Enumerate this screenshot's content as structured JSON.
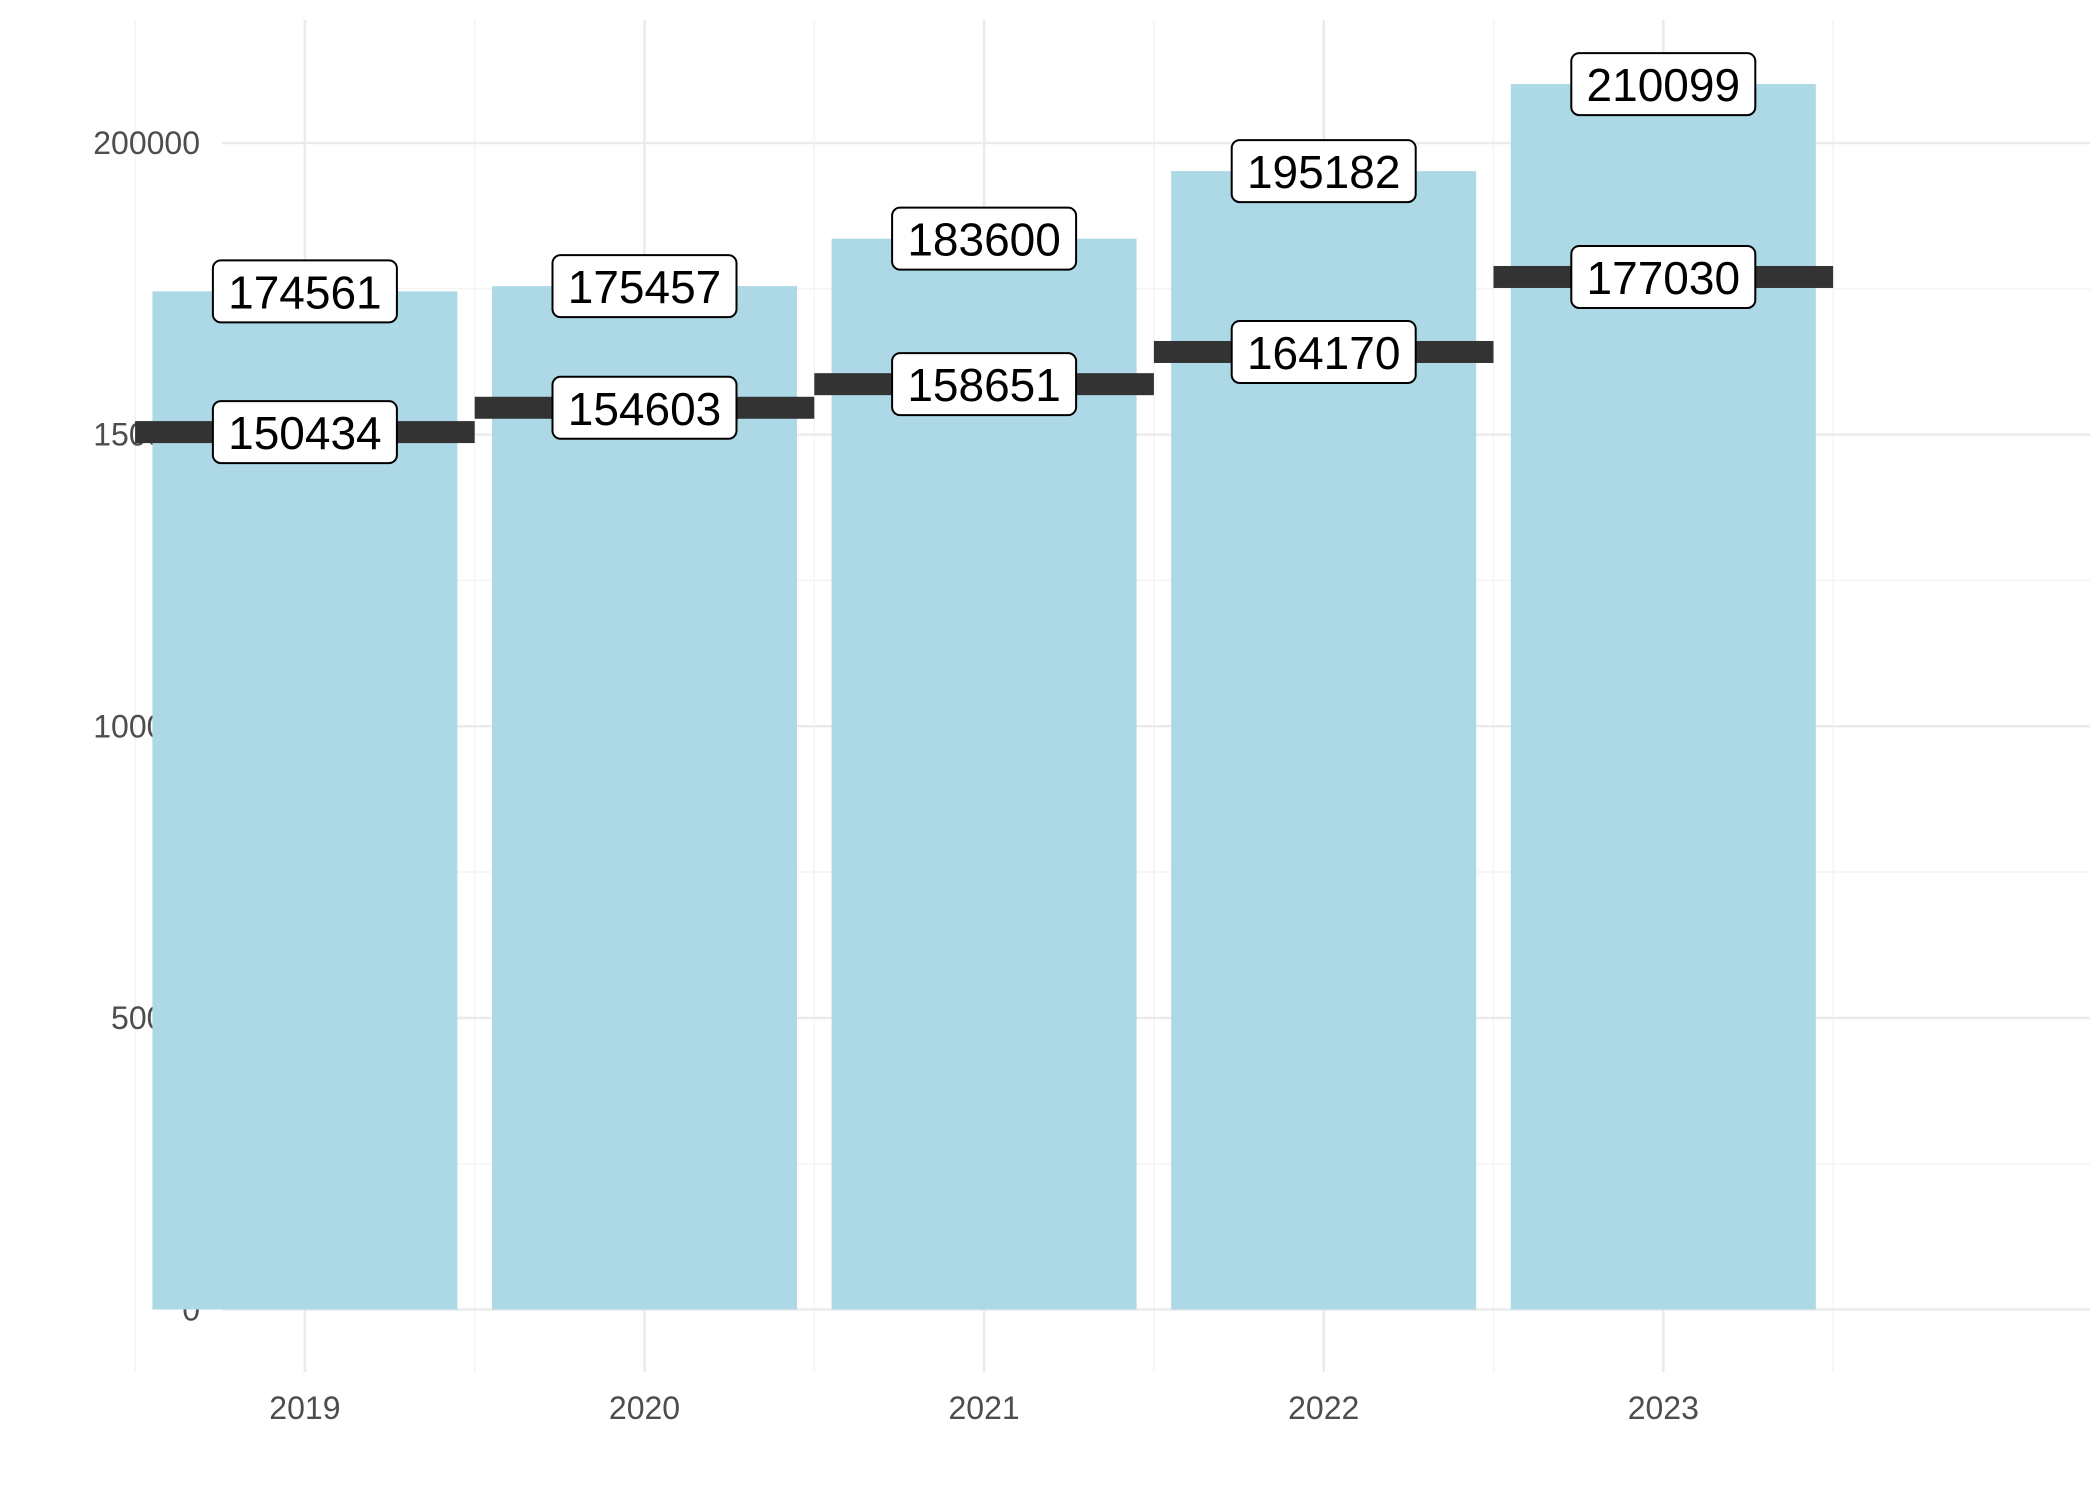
{
  "chart_data": {
    "type": "bar",
    "title": "",
    "xlabel": "",
    "ylabel": "",
    "categories": [
      "2019",
      "2020",
      "2021",
      "2022",
      "2023"
    ],
    "series": [
      {
        "values": [
          174561,
          175457,
          183600,
          195182,
          210099
        ],
        "mark": "bar",
        "color": "#ADD8E6"
      },
      {
        "values": [
          150434,
          154603,
          158651,
          164170,
          177030
        ],
        "mark": "horizontal-segment",
        "color": "#333333"
      }
    ],
    "ylim": [
      0,
      220000
    ],
    "y_ticks": [
      0,
      50000,
      100000,
      150000,
      200000
    ],
    "y_tick_labels": [
      "0",
      "50000",
      "100000",
      "150000",
      "200000"
    ],
    "grid": true,
    "legend": "none",
    "data_labels": true
  },
  "colors": {
    "bar": "#ADD8E6",
    "segment": "#333333",
    "grid_major": "#EBEBEB",
    "grid_minor": "#F4F4F4",
    "tick_text": "#4D4D4D",
    "label_border": "#000000",
    "label_fill": "#FFFFFF"
  }
}
